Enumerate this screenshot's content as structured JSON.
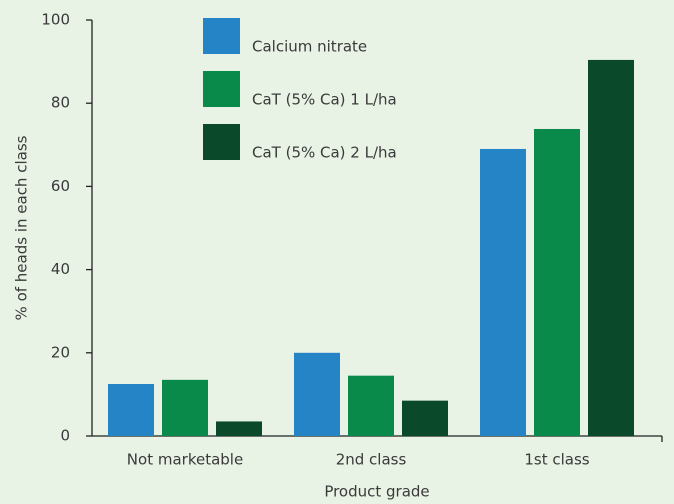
{
  "chart_data": {
    "type": "bar",
    "y_label": "% of heads in each class",
    "x_label": "Product grade",
    "categories": [
      "Not marketable",
      "2nd class",
      "1st class"
    ],
    "series": [
      {
        "name": "Calcium nitrate",
        "color": "#2484c6",
        "values": [
          12.5,
          20,
          69
        ]
      },
      {
        "name": "CaT (5% Ca) 1 L/ha",
        "color": "#0a8a4a",
        "values": [
          13.5,
          14.5,
          73.8
        ]
      },
      {
        "name": "CaT (5% Ca) 2 L/ha",
        "color": "#0a4a2b",
        "values": [
          3.5,
          8.5,
          90.4
        ]
      }
    ],
    "ylim": [
      0,
      100
    ],
    "yticks": [
      0,
      20,
      40,
      60,
      80,
      100
    ],
    "legend": "top"
  }
}
